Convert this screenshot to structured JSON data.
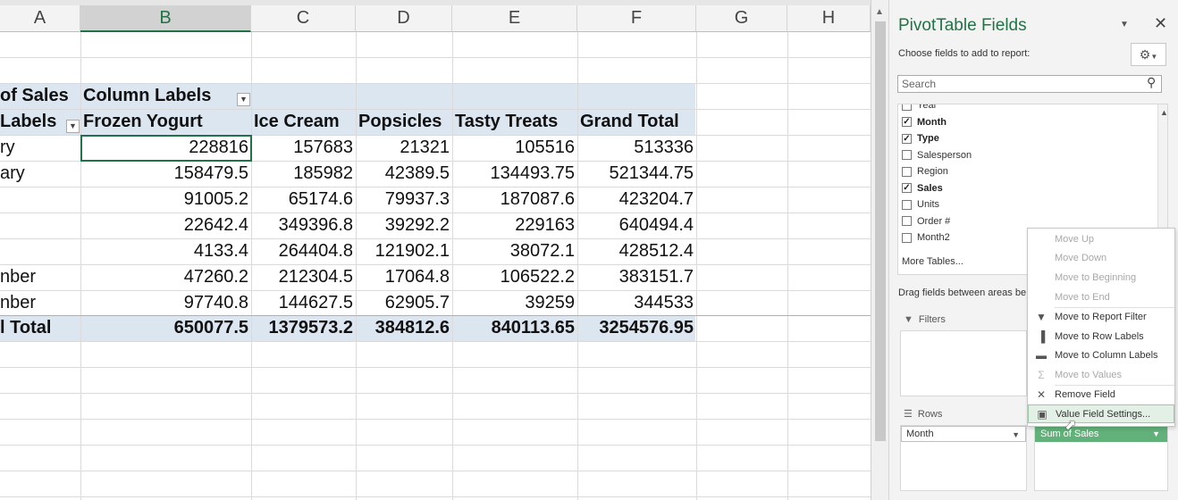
{
  "sheet": {
    "columns": [
      "A",
      "B",
      "C",
      "D",
      "E",
      "F",
      "G",
      "H"
    ],
    "selected_column": "B",
    "pivot": {
      "header_row1": {
        "a": "of Sales",
        "b": "Column Labels"
      },
      "header_row2": {
        "a": "Labels",
        "b": "Frozen Yogurt",
        "c": "Ice Cream",
        "d": "Popsicles",
        "e": "Tasty Treats",
        "f": "Grand Total"
      },
      "rows": [
        {
          "label": "ry",
          "b": "228816",
          "c": "157683",
          "d": "21321",
          "e": "105516",
          "f": "513336"
        },
        {
          "label": "ary",
          "b": "158479.5",
          "c": "185982",
          "d": "42389.5",
          "e": "134493.75",
          "f": "521344.75"
        },
        {
          "label": "",
          "b": "91005.2",
          "c": "65174.6",
          "d": "79937.3",
          "e": "187087.6",
          "f": "423204.7"
        },
        {
          "label": "",
          "b": "22642.4",
          "c": "349396.8",
          "d": "39292.2",
          "e": "229163",
          "f": "640494.4"
        },
        {
          "label": "",
          "b": "4133.4",
          "c": "264404.8",
          "d": "121902.1",
          "e": "38072.1",
          "f": "428512.4"
        },
        {
          "label": "nber",
          "b": "47260.2",
          "c": "212304.5",
          "d": "17064.8",
          "e": "106522.2",
          "f": "383151.7"
        },
        {
          "label": "nber",
          "b": "97740.8",
          "c": "144627.5",
          "d": "62905.7",
          "e": "39259",
          "f": "344533"
        }
      ],
      "total_row": {
        "label": "l Total",
        "b": "650077.5",
        "c": "1379573.2",
        "d": "384812.6",
        "e": "840113.65",
        "f": "3254576.95"
      }
    },
    "band_color": "#dce6f1",
    "accent": "#217346"
  },
  "pane": {
    "title": "PivotTable Fields",
    "choose_label": "Choose fields to add to report:",
    "search_placeholder": "Search",
    "fields": [
      {
        "name": "Year",
        "checked": false
      },
      {
        "name": "Month",
        "checked": true
      },
      {
        "name": "Type",
        "checked": true
      },
      {
        "name": "Salesperson",
        "checked": false
      },
      {
        "name": "Region",
        "checked": false
      },
      {
        "name": "Sales",
        "checked": true
      },
      {
        "name": "Units",
        "checked": false
      },
      {
        "name": "Order #",
        "checked": false
      },
      {
        "name": "Month2",
        "checked": false
      }
    ],
    "more_tables": "More Tables...",
    "drag_text": "Drag fields between areas be",
    "filters_label": "Filters",
    "rows_label": "Rows",
    "rows_item": "Month",
    "values_item": "Sum of Sales"
  },
  "menu": {
    "items": [
      {
        "label": "Move Up",
        "disabled": true,
        "icon": ""
      },
      {
        "label": "Move Down",
        "disabled": true,
        "icon": ""
      },
      {
        "label": "Move to Beginning",
        "disabled": true,
        "icon": ""
      },
      {
        "label": "Move to End",
        "disabled": true,
        "icon": ""
      },
      {
        "label": "Move to Report Filter",
        "disabled": false,
        "icon": "filter-icon"
      },
      {
        "label": "Move to Row Labels",
        "disabled": false,
        "icon": "row-labels-icon"
      },
      {
        "label": "Move to Column Labels",
        "disabled": false,
        "icon": "column-labels-icon"
      },
      {
        "label": "Move to Values",
        "disabled": true,
        "icon": "sigma-icon"
      },
      {
        "label": "Remove Field",
        "disabled": false,
        "icon": "remove-icon"
      },
      {
        "label": "Value Field Settings...",
        "disabled": false,
        "icon": "settings-icon",
        "highlighted": true
      }
    ]
  }
}
